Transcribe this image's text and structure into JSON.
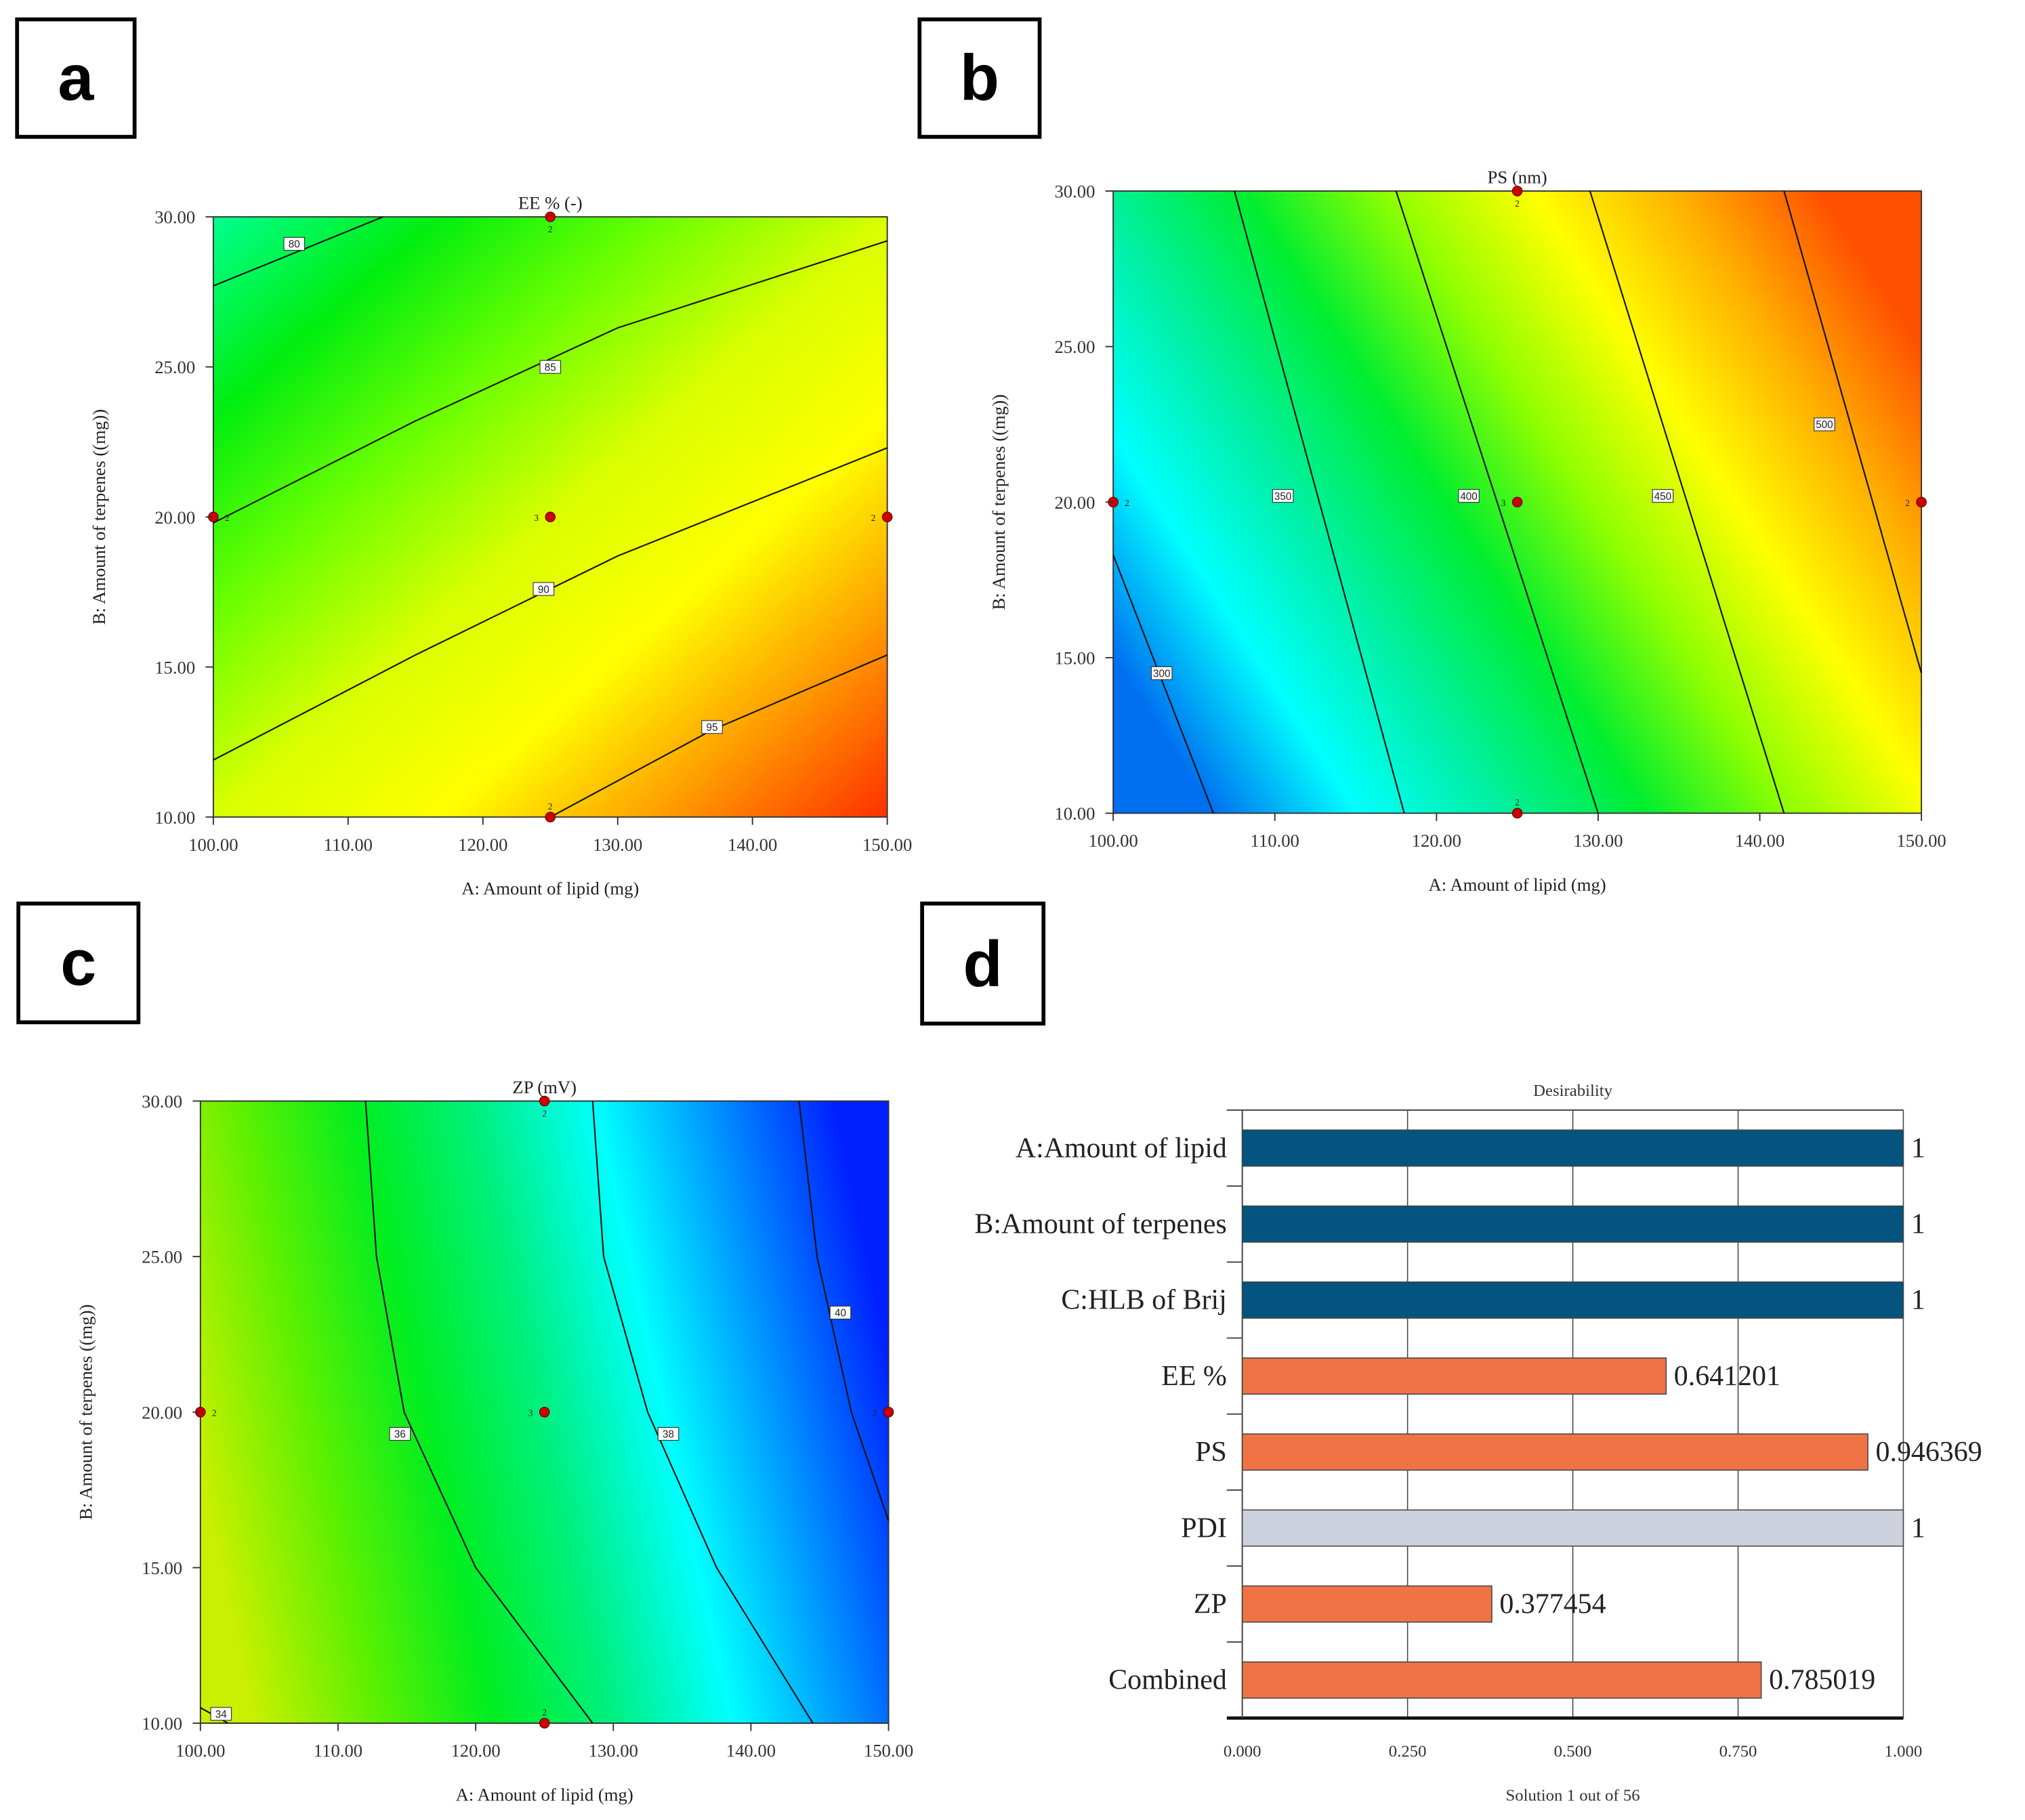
{
  "colors": {
    "design_point": "#cc0000",
    "bar_factor": "#03557f",
    "bar_response": "#f07346",
    "bar_pdi": "#ccd1dd"
  },
  "contour_panels": [
    {
      "letter": "a",
      "title": "EE % (-)",
      "xlabel": "A: Amount of lipid (mg)",
      "ylabel": "B: Amount of terpenes ((mg))",
      "xlim": [
        100,
        150
      ],
      "ylim": [
        10,
        30
      ],
      "xticks": [
        "100.00",
        "110.00",
        "120.00",
        "130.00",
        "140.00",
        "150.00"
      ],
      "yticks": [
        "10.00",
        "15.00",
        "20.00",
        "25.00",
        "30.00"
      ],
      "gradient": [
        "#00ff90",
        "#00ee10",
        "#6cff00",
        "#d8ff00",
        "#ffff00",
        "#ff9a00",
        "#ff3000"
      ],
      "contours": [
        {
          "level": "80",
          "points": [
            [
              100,
              27.7
            ],
            [
              112.6,
              30
            ]
          ],
          "label_at": [
            106,
            29.1
          ]
        },
        {
          "level": "85",
          "points": [
            [
              100,
              19.8
            ],
            [
              115,
              23.2
            ],
            [
              130,
              26.3
            ],
            [
              150,
              29.2
            ]
          ],
          "label_at": [
            125,
            25
          ]
        },
        {
          "level": "90",
          "points": [
            [
              100,
              11.9
            ],
            [
              115,
              15.4
            ],
            [
              130,
              18.7
            ],
            [
              150,
              22.3
            ]
          ],
          "label_at": [
            124.5,
            17.6
          ]
        },
        {
          "level": "95",
          "points": [
            [
              125,
              10
            ],
            [
              137,
              12.9
            ],
            [
              150,
              15.4
            ]
          ],
          "label_at": [
            137,
            13
          ]
        }
      ],
      "design_points": [
        {
          "a": 125,
          "b": 30,
          "n": "2"
        },
        {
          "a": 100,
          "b": 20,
          "n": "2"
        },
        {
          "a": 125,
          "b": 20,
          "n": "3"
        },
        {
          "a": 150,
          "b": 20,
          "n": "2"
        },
        {
          "a": 125,
          "b": 10,
          "n": "2"
        }
      ]
    },
    {
      "letter": "b",
      "title": "PS (nm)",
      "xlabel": "A: Amount of lipid (mg)",
      "ylabel": "B: Amount of terpenes ((mg))",
      "xlim": [
        100,
        150
      ],
      "ylim": [
        10,
        30
      ],
      "xticks": [
        "100.00",
        "110.00",
        "120.00",
        "130.00",
        "140.00",
        "150.00"
      ],
      "yticks": [
        "10.00",
        "15.00",
        "20.00",
        "25.00",
        "30.00"
      ],
      "gradient": [
        "#0070f0",
        "#00ffff",
        "#00f0a0",
        "#00ee30",
        "#90ff00",
        "#ffff00",
        "#ffb000",
        "#ff5000"
      ],
      "contours": [
        {
          "level": "300",
          "points": [
            [
              100,
              18.3
            ],
            [
              106.2,
              10
            ]
          ],
          "label_at": [
            103,
            14.5
          ]
        },
        {
          "level": "350",
          "points": [
            [
              107.5,
              30
            ],
            [
              118,
              10
            ]
          ],
          "label_at": [
            110.5,
            20.2
          ]
        },
        {
          "level": "400",
          "points": [
            [
              117.5,
              30
            ],
            [
              130,
              10
            ]
          ],
          "label_at": [
            122,
            20.2
          ]
        },
        {
          "level": "450",
          "points": [
            [
              129.5,
              30
            ],
            [
              141.5,
              10
            ]
          ],
          "label_at": [
            134,
            20.2
          ]
        },
        {
          "level": "500",
          "points": [
            [
              141.5,
              30
            ],
            [
              150,
              14.5
            ]
          ],
          "label_at": [
            144,
            22.5
          ]
        }
      ],
      "design_points": [
        {
          "a": 125,
          "b": 30,
          "n": "2"
        },
        {
          "a": 100,
          "b": 20,
          "n": "2"
        },
        {
          "a": 125,
          "b": 20,
          "n": "3"
        },
        {
          "a": 150,
          "b": 20,
          "n": "2"
        },
        {
          "a": 125,
          "b": 10,
          "n": "2"
        }
      ]
    },
    {
      "letter": "c",
      "title": "ZP (mV)",
      "xlabel": "A: Amount of lipid (mg)",
      "ylabel": "B: Amount of terpenes ((mg))",
      "xlim": [
        100,
        150
      ],
      "ylim": [
        10,
        30
      ],
      "xticks": [
        "100.00",
        "110.00",
        "120.00",
        "130.00",
        "140.00",
        "150.00"
      ],
      "yticks": [
        "10.00",
        "15.00",
        "20.00",
        "25.00",
        "30.00"
      ],
      "gradient": [
        "#c8f000",
        "#60f000",
        "#00ee20",
        "#00f080",
        "#00ffff",
        "#0090ff",
        "#0020ff"
      ],
      "contours": [
        {
          "level": "34",
          "points": [
            [
              100,
              10.5
            ],
            [
              102,
              10
            ]
          ],
          "label_at": [
            101.5,
            10.3
          ]
        },
        {
          "level": "36",
          "points": [
            [
              112,
              30
            ],
            [
              112.8,
              25
            ],
            [
              114.8,
              20
            ],
            [
              120,
              15
            ],
            [
              128.5,
              10
            ]
          ],
          "label_at": [
            114.5,
            19.3
          ]
        },
        {
          "level": "38",
          "points": [
            [
              128.5,
              30
            ],
            [
              129.3,
              25
            ],
            [
              132.5,
              20
            ],
            [
              137.5,
              15
            ],
            [
              144.5,
              10
            ]
          ],
          "label_at": [
            134,
            19.3
          ]
        },
        {
          "level": "40",
          "points": [
            [
              143.5,
              30
            ],
            [
              144.8,
              25
            ],
            [
              147.3,
              20
            ],
            [
              150,
              16.5
            ]
          ],
          "label_at": [
            146.5,
            23.2
          ]
        }
      ],
      "design_points": [
        {
          "a": 125,
          "b": 30,
          "n": "2"
        },
        {
          "a": 100,
          "b": 20,
          "n": "2"
        },
        {
          "a": 125,
          "b": 20,
          "n": "3"
        },
        {
          "a": 150,
          "b": 20,
          "n": "2"
        },
        {
          "a": 125,
          "b": 10,
          "n": "2"
        }
      ]
    }
  ],
  "chart_data": [
    {
      "type": "heatmap",
      "title": "EE % (-)",
      "xlabel": "A: Amount of lipid (mg)",
      "ylabel": "B: Amount of terpenes ((mg))",
      "xlim": [
        100,
        150
      ],
      "ylim": [
        10,
        30
      ],
      "contour_levels": [
        80,
        85,
        90,
        95
      ]
    },
    {
      "type": "heatmap",
      "title": "PS (nm)",
      "xlabel": "A: Amount of lipid (mg)",
      "ylabel": "B: Amount of terpenes ((mg))",
      "xlim": [
        100,
        150
      ],
      "ylim": [
        10,
        30
      ],
      "contour_levels": [
        300,
        350,
        400,
        450,
        500
      ]
    },
    {
      "type": "heatmap",
      "title": "ZP (mV)",
      "xlabel": "A: Amount of lipid (mg)",
      "ylabel": "B: Amount of terpenes ((mg))",
      "xlim": [
        100,
        150
      ],
      "ylim": [
        10,
        30
      ],
      "contour_levels": [
        34,
        36,
        38,
        40
      ]
    },
    {
      "type": "bar",
      "letter": "d",
      "title": "Desirability",
      "xlabel": "Solution 1 out of 56",
      "xlim": [
        0,
        1
      ],
      "xticks": [
        "0.000",
        "0.250",
        "0.500",
        "0.750",
        "1.000"
      ],
      "categories": [
        "A:Amount of lipid",
        "B:Amount of terpenes",
        "C:HLB of Brij",
        "EE %",
        "PS",
        "PDI",
        "ZP",
        "Combined"
      ],
      "values": [
        1,
        1,
        1,
        0.641201,
        0.946369,
        1,
        0.377454,
        0.785019
      ],
      "value_labels": [
        "1",
        "1",
        "1",
        "0.641201",
        "0.946369",
        "1",
        "0.377454",
        "0.785019"
      ],
      "bar_kinds": [
        "factor",
        "factor",
        "factor",
        "response",
        "response",
        "pdi",
        "response",
        "response"
      ]
    }
  ]
}
